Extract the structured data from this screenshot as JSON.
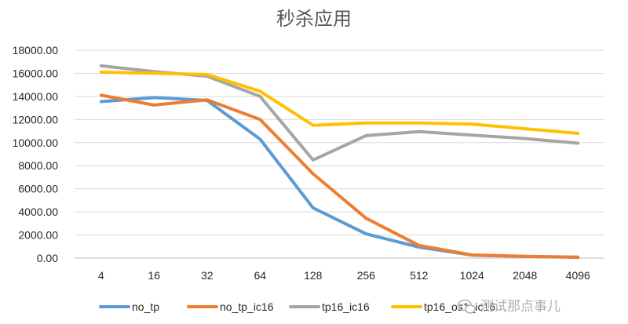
{
  "chart_data": {
    "type": "line",
    "title": "秒杀应用",
    "categories": [
      "4",
      "16",
      "32",
      "64",
      "128",
      "256",
      "512",
      "1024",
      "2048",
      "4096"
    ],
    "ylim": [
      0,
      18000
    ],
    "yticks": [
      "0.00",
      "2000.00",
      "4000.00",
      "6000.00",
      "8000.00",
      "10000.00",
      "12000.00",
      "14000.00",
      "16000.00",
      "18000.00"
    ],
    "grid": true,
    "legend_position": "bottom",
    "series": [
      {
        "name": "no_tp",
        "color": "#5b9bd5",
        "values": [
          13550,
          13900,
          13650,
          10300,
          4350,
          2100,
          950,
          260,
          140,
          70
        ]
      },
      {
        "name": "no_tp_ic16",
        "color": "#ed7d31",
        "values": [
          14100,
          13250,
          13700,
          12000,
          7300,
          3450,
          1100,
          270,
          150,
          80
        ]
      },
      {
        "name": "tp16_ic16",
        "color": "#a5a5a5",
        "values": [
          16650,
          16150,
          15750,
          14000,
          8500,
          10600,
          10950,
          10650,
          10350,
          9950
        ]
      },
      {
        "name": "tp16_os1_ic16",
        "color": "#ffc000",
        "values": [
          16100,
          16000,
          15900,
          14450,
          11500,
          11700,
          11700,
          11600,
          11200,
          10800
        ]
      }
    ]
  },
  "watermark": {
    "icon": "wechat-icon",
    "text": "测试那点事儿"
  }
}
